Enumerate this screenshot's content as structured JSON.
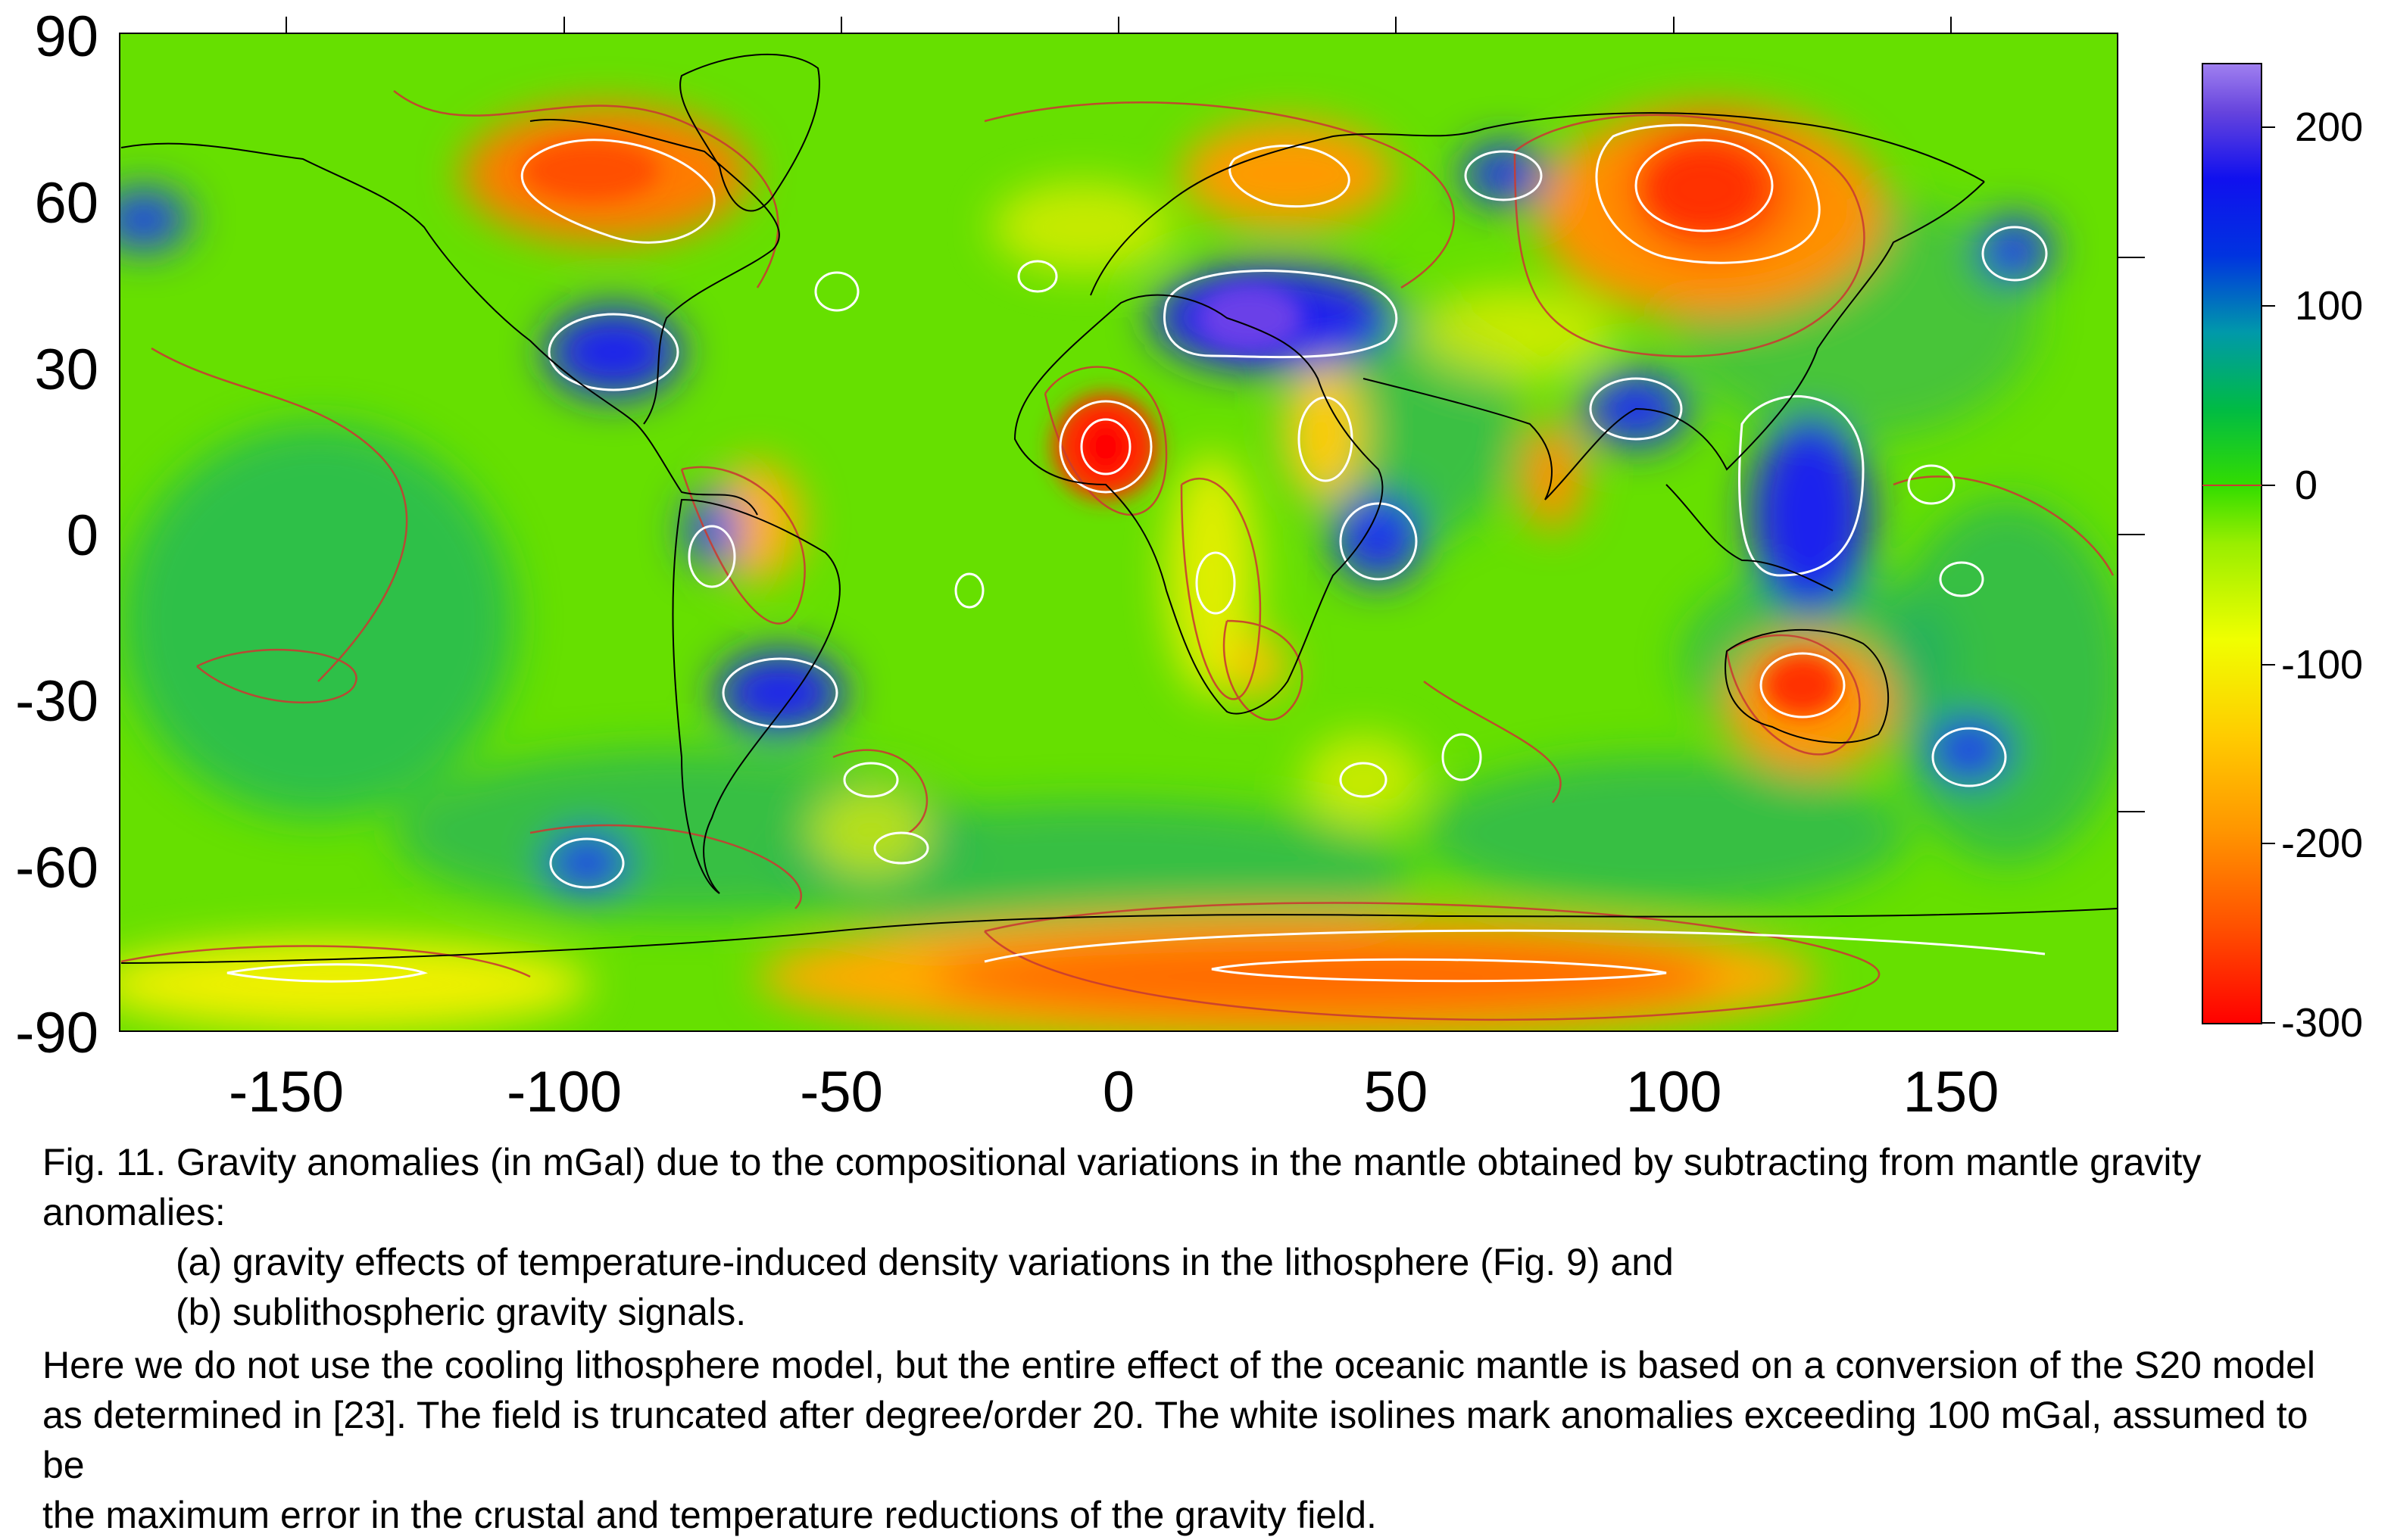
{
  "map": {
    "x_ticks": [
      "-150",
      "-100",
      "-50",
      "0",
      "50",
      "100",
      "150"
    ],
    "y_ticks": [
      "90",
      "60",
      "30",
      "0",
      "-30",
      "-60",
      "-90"
    ],
    "x_range": [
      -180,
      180
    ],
    "y_range": [
      -90,
      90
    ],
    "projection": "equirectangular",
    "contour_colors": {
      "red_isoline": "#c83c32",
      "white_isoline": "#ffffff",
      "coastline": "#000000"
    }
  },
  "colorbar": {
    "ticks": [
      "200",
      "100",
      "0",
      "-100",
      "-200",
      "-300"
    ],
    "range": [
      -300,
      235
    ],
    "colors": [
      "#ff0000",
      "#ff6a00",
      "#ffb000",
      "#ffff00",
      "#88ee00",
      "#22cc00",
      "#00aa66",
      "#0044dd",
      "#0000ee",
      "#5533dd",
      "#9070ee"
    ]
  },
  "caption": {
    "line1": "Fig. 11. Gravity anomalies (in mGal) due to the compositional variations in the mantle obtained by subtracting from mantle gravity anomalies:",
    "line2": "(a) gravity effects of temperature-induced density variations in the lithosphere (Fig. 9) and",
    "line3": "(b) sublithospheric gravity signals."
  },
  "note": {
    "line1": "Here we do not use the cooling lithosphere model, but the entire effect of the oceanic mantle is based on a conversion of the S20 model",
    "line2": "as determined in [23]. The field is truncated after degree/order 20. The white isolines mark anomalies exceeding 100 mGal, assumed to be",
    "line3": "the maximum error in the crustal and temperature reductions of the gravity field."
  }
}
